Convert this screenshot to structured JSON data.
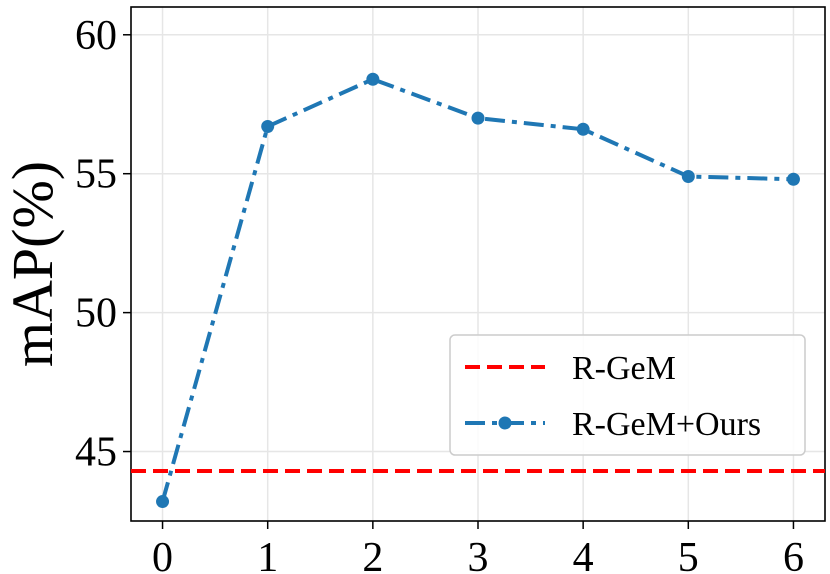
{
  "chart_data": {
    "type": "line",
    "xlabel": "",
    "ylabel": "mAP(%)",
    "xlim": [
      -0.3,
      6.3
    ],
    "ylim": [
      42.5,
      61
    ],
    "x_ticks": [
      0,
      1,
      2,
      3,
      4,
      5,
      6
    ],
    "y_ticks": [
      45,
      50,
      55,
      60
    ],
    "grid": true,
    "legend_position": "lower-right",
    "series": [
      {
        "name": "R-GeM",
        "style": "dashed",
        "color": "#ff0000",
        "kind": "horizontal-line",
        "y": 44.3
      },
      {
        "name": "R-GeM+Ours",
        "style": "dash-dot",
        "color": "#1f77b4",
        "marker": "circle",
        "x": [
          0,
          1,
          2,
          3,
          4,
          5,
          6
        ],
        "values": [
          43.2,
          56.7,
          58.4,
          57.0,
          56.6,
          54.9,
          54.8
        ]
      }
    ]
  }
}
